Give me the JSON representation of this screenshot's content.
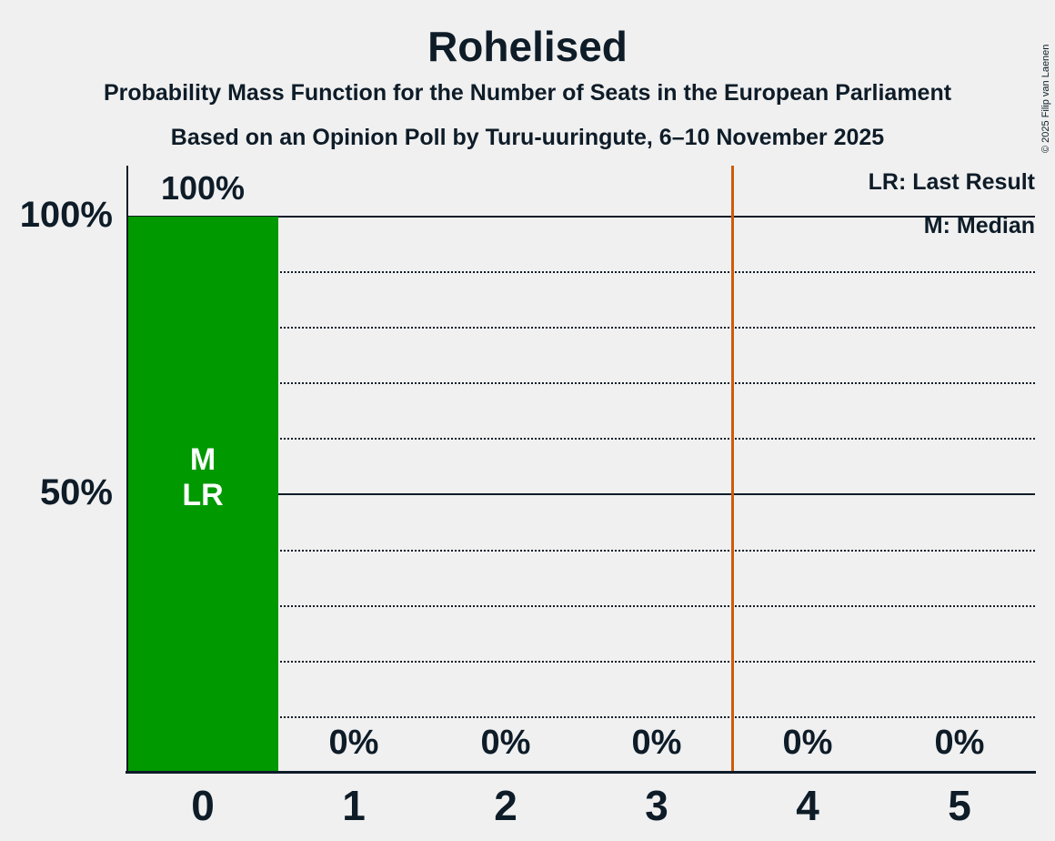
{
  "header": {
    "title": "Rohelised",
    "subtitle1": "Probability Mass Function for the Number of Seats in the European Parliament",
    "subtitle2": "Based on an Opinion Poll by Turu-uuringute, 6–10 November 2025",
    "copyright": "© 2025 Filip van Laenen"
  },
  "legend": {
    "last_result": "LR: Last Result",
    "median": "M: Median"
  },
  "y_axis": {
    "label_100": "100%",
    "label_50": "50%"
  },
  "markers": {
    "median_label": "M",
    "last_result_label": "LR",
    "median_at_seats": 0,
    "last_result_at_seats": 0
  },
  "chart_data": {
    "type": "bar",
    "title": "Rohelised",
    "subtitle": "Probability Mass Function for the Number of Seats in the European Parliament",
    "source": "Based on an Opinion Poll by Turu-uuringute, 6–10 November 2025",
    "categories": [
      "0",
      "1",
      "2",
      "3",
      "4",
      "5"
    ],
    "values": [
      100,
      0,
      0,
      0,
      0,
      0
    ],
    "value_labels": [
      "100%",
      "0%",
      "0%",
      "0%",
      "0%",
      "0%"
    ],
    "ylim": [
      0,
      109
    ],
    "ytick_labels": [
      "100%",
      "50%"
    ],
    "ytick_values": [
      100,
      50
    ],
    "solid_gridlines": [
      100,
      50
    ],
    "dotted_gridlines": [
      90,
      80,
      70,
      60,
      40,
      30,
      20,
      10
    ],
    "grid": true,
    "legend_position": "top-right",
    "majority_threshold_x": 3.5,
    "colors": {
      "bar": "#009900",
      "threshold_line": "#CC5C0C",
      "text": "#0E1C28",
      "background": "#F0F0F0",
      "bar_marker_text": "#FFFFFF"
    }
  }
}
